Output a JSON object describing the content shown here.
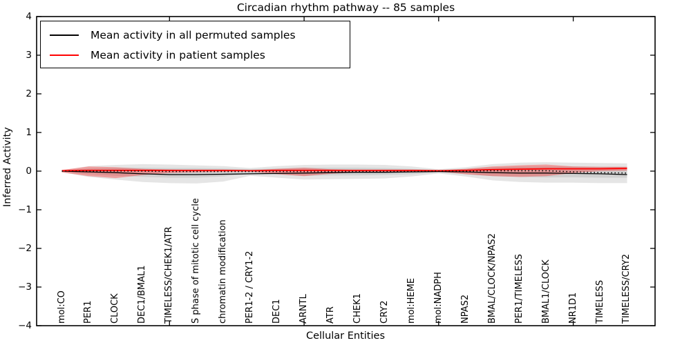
{
  "title": "Circadian rhythm pathway -- 85 samples",
  "legend": {
    "items": [
      {
        "label": "Mean activity in all permuted samples",
        "color": "#000000"
      },
      {
        "label": "Mean activity in patient samples",
        "color": "#ff0000"
      }
    ]
  },
  "colors": {
    "background": "#ffffff",
    "axes": "#000000",
    "permuted_line": "#000000",
    "patient_line": "#ff0000",
    "permuted_band": "#000000",
    "patient_band": "#ff0000"
  },
  "chart_data": {
    "type": "line",
    "title": "Circadian rhythm pathway -- 85 samples",
    "xlabel": "Cellular Entities",
    "ylabel": "Inferred Activity",
    "ylim": [
      -4,
      4
    ],
    "grid": false,
    "legend_position": "upper left",
    "ytick_values": [
      4,
      3,
      2,
      1,
      0,
      -1,
      -2,
      -3,
      -4
    ],
    "ytick_labels": [
      "4",
      "3",
      "2",
      "1",
      "0",
      "−1",
      "−2",
      "−3",
      "−4"
    ],
    "xtick_positions": [
      4,
      9,
      14,
      19
    ],
    "categories": [
      "mol:CO",
      "PER1",
      "CLOCK",
      "DEC1/BMAL1",
      "TIMELESS/CHEK1/ATR",
      "S phase of mitotic cell cycle",
      "chromatin modification",
      "PER1-2 / CRY1-2",
      "DEC1",
      "ARNTL",
      "ATR",
      "CHEK1",
      "CRY2",
      "mol:HEME",
      "mol:NADPH",
      "NPAS2",
      "BMAL/CLOCK/NPAS2",
      "PER1/TIMELESS",
      "BMAL1/CLOCK",
      "NR1D1",
      "TIMELESS",
      "TIMELESS/CRY2"
    ],
    "series": [
      {
        "name": "Mean activity in all permuted samples",
        "color": "#000000",
        "line_style": "solid",
        "width": 1.3,
        "values": [
          0.0,
          -0.02,
          -0.04,
          -0.07,
          -0.09,
          -0.09,
          -0.08,
          -0.07,
          -0.06,
          -0.05,
          -0.04,
          -0.03,
          -0.03,
          -0.02,
          -0.01,
          -0.02,
          -0.04,
          -0.05,
          -0.05,
          -0.06,
          -0.07,
          -0.09
        ]
      },
      {
        "name": "Mean activity in patient samples",
        "color": "#ff0000",
        "line_style": "solid",
        "width": 1.8,
        "values": [
          0.01,
          0.02,
          0.02,
          0.02,
          0.02,
          0.02,
          0.02,
          0.01,
          0.02,
          0.02,
          0.02,
          0.02,
          0.02,
          0.02,
          0.01,
          0.02,
          0.04,
          0.05,
          0.06,
          0.06,
          0.06,
          0.07
        ]
      },
      {
        "name": "unlabeled dotted overlay",
        "color": "#000000",
        "line_style": "dotted",
        "width": 1.6,
        "values": [
          0.0,
          0.0,
          0.0,
          0.0,
          -0.01,
          -0.01,
          -0.01,
          -0.01,
          -0.01,
          -0.01,
          -0.01,
          -0.01,
          -0.01,
          -0.01,
          0.0,
          0.0,
          0.01,
          0.01,
          0.01,
          -0.02,
          -0.04,
          -0.05
        ]
      }
    ],
    "bands": [
      {
        "name": "permuted-sample-range-outer",
        "color": "#000000",
        "opacity": 0.1,
        "upper": [
          0.02,
          0.13,
          0.16,
          0.18,
          0.17,
          0.15,
          0.13,
          0.08,
          0.13,
          0.16,
          0.17,
          0.17,
          0.16,
          0.12,
          0.05,
          0.1,
          0.18,
          0.22,
          0.23,
          0.22,
          0.21,
          0.2
        ],
        "lower": [
          -0.03,
          -0.15,
          -0.22,
          -0.28,
          -0.31,
          -0.32,
          -0.27,
          -0.12,
          -0.17,
          -0.22,
          -0.21,
          -0.2,
          -0.19,
          -0.14,
          -0.06,
          -0.14,
          -0.24,
          -0.28,
          -0.3,
          -0.3,
          -0.31,
          -0.31
        ]
      },
      {
        "name": "permuted-sample-range-inner",
        "color": "#000000",
        "opacity": 0.09,
        "upper": [
          0.01,
          0.07,
          0.09,
          0.09,
          0.08,
          0.08,
          0.07,
          0.05,
          0.07,
          0.09,
          0.09,
          0.09,
          0.08,
          0.06,
          0.03,
          0.06,
          0.1,
          0.12,
          0.12,
          0.12,
          0.11,
          0.11
        ],
        "lower": [
          -0.02,
          -0.08,
          -0.12,
          -0.15,
          -0.17,
          -0.17,
          -0.14,
          -0.07,
          -0.09,
          -0.12,
          -0.11,
          -0.11,
          -0.1,
          -0.08,
          -0.03,
          -0.08,
          -0.13,
          -0.15,
          -0.16,
          -0.16,
          -0.17,
          -0.17
        ]
      },
      {
        "name": "patient-sample-range",
        "color": "#ff0000",
        "opacity": 0.3,
        "upper": [
          0.03,
          0.12,
          0.1,
          0.06,
          0.04,
          0.03,
          0.03,
          0.02,
          0.06,
          0.09,
          0.05,
          0.03,
          0.03,
          0.03,
          0.02,
          0.06,
          0.12,
          0.15,
          0.17,
          0.12,
          0.11,
          0.11
        ],
        "lower": [
          -0.03,
          -0.13,
          -0.18,
          -0.1,
          -0.05,
          -0.03,
          -0.02,
          -0.01,
          -0.08,
          -0.13,
          -0.07,
          -0.03,
          -0.02,
          -0.02,
          -0.01,
          -0.08,
          -0.13,
          -0.15,
          -0.13,
          -0.05,
          0.0,
          0.01
        ]
      }
    ]
  }
}
